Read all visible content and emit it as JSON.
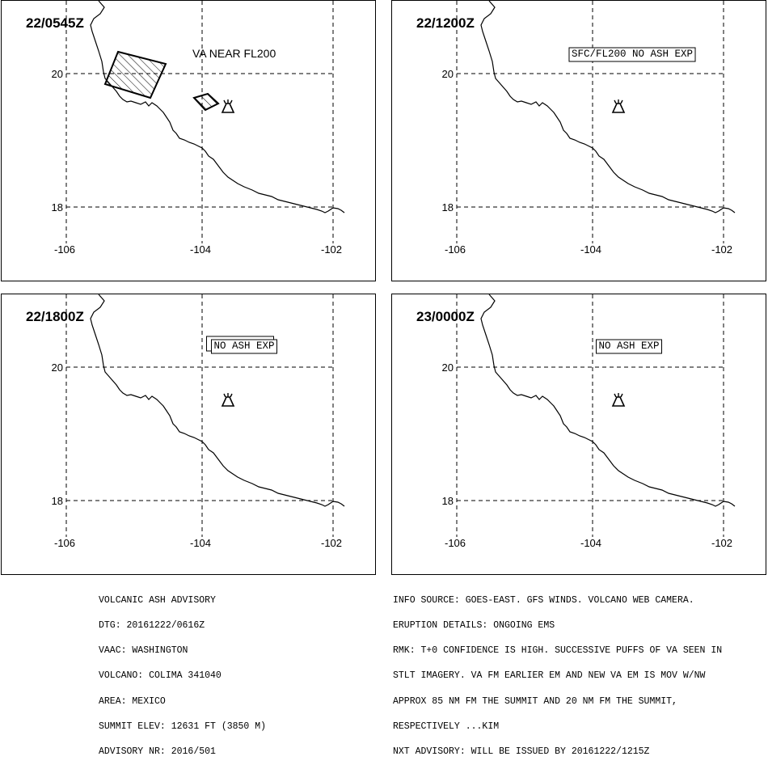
{
  "panels": [
    {
      "time": "22/0545Z",
      "annotation": "VA NEAR FL200",
      "annotation_boxed": false,
      "has_ash": true
    },
    {
      "time": "22/1200Z",
      "annotation": "SFC/FL200 NO ASH EXP",
      "annotation_boxed": true,
      "has_ash": false
    },
    {
      "time": "22/1800Z",
      "annotation": "NO ASH EXP",
      "annotation_boxed": true,
      "has_ash": false
    },
    {
      "time": "23/0000Z",
      "annotation": "NO ASH EXP",
      "annotation_boxed": true,
      "has_ash": false
    }
  ],
  "map": {
    "lat_ticks": [
      "20",
      "18"
    ],
    "lon_ticks": [
      "-106",
      "-104",
      "-102"
    ],
    "volcano_icon": "volcano-icon",
    "ash_fill": "diagonal-hatch"
  },
  "advisory": {
    "lines": [
      "VOLCANIC ASH ADVISORY",
      "DTG: 20161222/0616Z",
      "VAAC: WASHINGTON",
      "VOLCANO: COLIMA 341040",
      "AREA: MEXICO",
      "SUMMIT ELEV: 12631 FT (3850 M)",
      "ADVISORY NR: 2016/501"
    ]
  },
  "remarks": {
    "lines": [
      "INFO SOURCE: GOES-EAST. GFS WINDS. VOLCANO WEB CAMERA.",
      "ERUPTION DETAILS: ONGOING EMS",
      "RMK: T+0 CONFIDENCE IS HIGH. SUCCESSIVE PUFFS OF VA SEEN IN",
      "STLT IMAGERY. VA FM EARLIER EM AND NEW VA EM IS MOV W/NW",
      "APPROX 85 NM FM THE SUMMIT AND 20 NM FM THE SUMMIT,",
      "RESPECTIVELY ...KIM",
      "NXT ADVISORY: WILL BE ISSUED BY 20161222/1215Z"
    ]
  }
}
